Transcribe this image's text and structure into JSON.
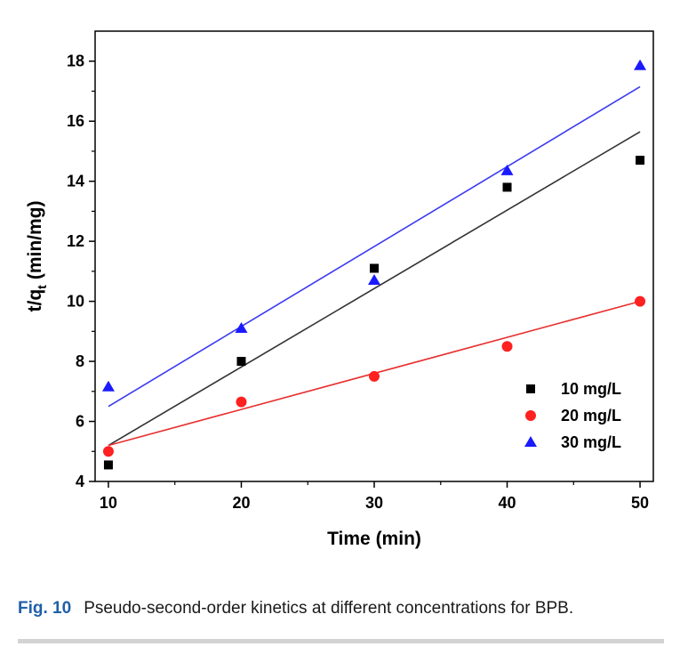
{
  "chart_data": {
    "type": "scatter",
    "xlabel": "Time (min)",
    "ylabel_main": "t/q",
    "ylabel_sub": "t",
    "ylabel_units": "(min/mg)",
    "xlim": [
      9,
      51
    ],
    "ylim": [
      4,
      19
    ],
    "xticks": [
      10,
      20,
      30,
      40,
      50
    ],
    "yticks": [
      4,
      6,
      8,
      10,
      12,
      14,
      16,
      18
    ],
    "x": [
      10,
      20,
      30,
      40,
      50
    ],
    "grid": false,
    "legend_position": "bottom-right",
    "series": [
      {
        "name": "10 mg/L",
        "marker": "square",
        "color": "#000000",
        "line_color": "#333333",
        "values": [
          4.55,
          8.0,
          11.1,
          13.8,
          14.7
        ],
        "fit": [
          5.2,
          15.65
        ]
      },
      {
        "name": "20 mg/L",
        "marker": "circle",
        "color": "#ff2020",
        "line_color": "#e83030",
        "values": [
          5.0,
          6.65,
          7.5,
          8.5,
          10.0
        ],
        "fit": [
          5.2,
          10.0
        ]
      },
      {
        "name": "30 mg/L",
        "marker": "triangle",
        "color": "#1a1aff",
        "line_color": "#3b3bf0",
        "values": [
          7.15,
          9.1,
          10.7,
          14.35,
          17.85
        ],
        "fit": [
          6.5,
          17.15
        ]
      }
    ]
  },
  "caption": {
    "label": "Fig. 10",
    "text": "Pseudo-second-order kinetics at different concentrations for BPB."
  }
}
